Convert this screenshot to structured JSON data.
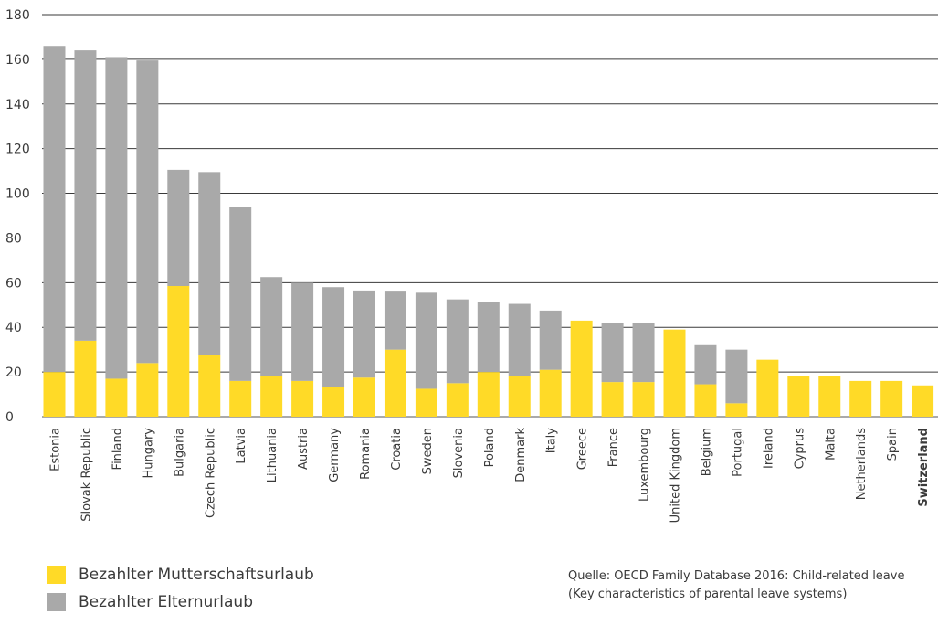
{
  "chart_data": {
    "type": "bar",
    "stacked": true,
    "categories": [
      "Estonia",
      "Slovak Republic",
      "Finland",
      "Hungary",
      "Bulgaria",
      "Czech Republic",
      "Latvia",
      "Lithuania",
      "Austria",
      "Germany",
      "Romania",
      "Croatia",
      "Sweden",
      "Slovenia",
      "Poland",
      "Denmark",
      "Italy",
      "Greece",
      "France",
      "Luxembourg",
      "United Kingdom",
      "Belgium",
      "Portugal",
      "Ireland",
      "Cyprus",
      "Malta",
      "Netherlands",
      "Spain",
      "Switzerland"
    ],
    "highlight_category": "Switzerland",
    "series": [
      {
        "name": "Bezahlter Mutterschaftsurlaub",
        "color": "#ffda27",
        "values": [
          20,
          34,
          17,
          24,
          58.5,
          27.5,
          16,
          18,
          16,
          13.5,
          17.5,
          30,
          12.5,
          15,
          20,
          18,
          21,
          43,
          15.5,
          15.5,
          39,
          14.5,
          6,
          25.5,
          18,
          18,
          16,
          16,
          14
        ]
      },
      {
        "name": "Bezahlter Elternurlaub",
        "color": "#a9a9a9",
        "values": [
          146,
          130,
          144,
          135.5,
          52,
          82,
          78,
          44.5,
          44,
          44.5,
          39,
          26,
          43,
          37.5,
          31.5,
          32.5,
          26.5,
          0,
          26.5,
          26.5,
          0,
          17.5,
          24,
          0,
          0,
          0,
          0,
          0,
          0
        ]
      }
    ],
    "ylim": [
      0,
      180
    ],
    "yticks": [
      0,
      20,
      40,
      60,
      80,
      100,
      120,
      140,
      160,
      180
    ],
    "grid": true,
    "legend_position": "bottom-left"
  },
  "legend": {
    "items": [
      {
        "label": "Bezahlter Mutterschaftsurlaub",
        "color": "#ffda27"
      },
      {
        "label": "Bezahlter Elternurlaub",
        "color": "#a9a9a9"
      }
    ]
  },
  "source": "Quelle: OECD Family Database 2016: Child-related leave (Key characteristics of parental leave systems)"
}
